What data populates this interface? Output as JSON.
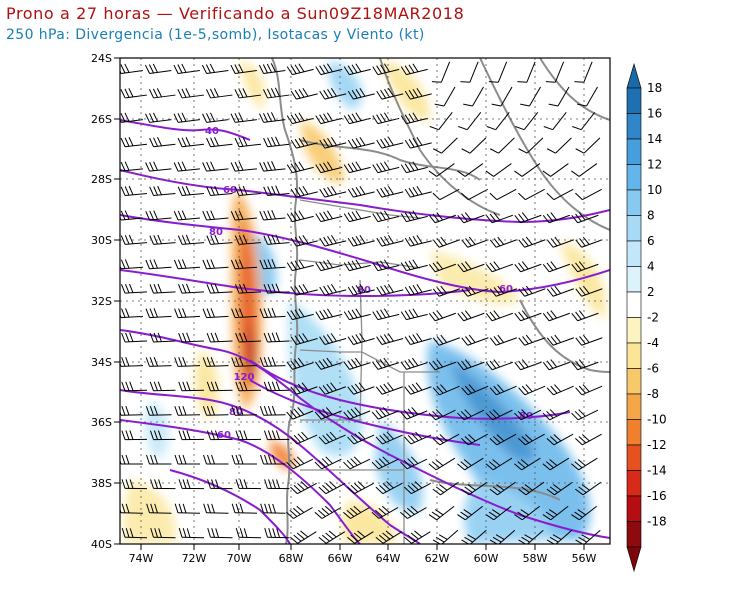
{
  "header": {
    "title": "Prono a 27 horas — Verificando a Sun09Z18MAR2018",
    "subtitle": "250 hPa: Divergencia (1e-5,somb), Isotacas y Viento (kt)"
  },
  "map": {
    "region": "Sudamerica central-sur",
    "lat_ticks": [
      "24S",
      "26S",
      "28S",
      "30S",
      "32S",
      "34S",
      "36S",
      "38S",
      "40S"
    ],
    "lon_ticks": [
      "74W",
      "72W",
      "70W",
      "68W",
      "66W",
      "64W",
      "62W",
      "60W",
      "58W",
      "56W"
    ],
    "isotach_labels": [
      "40",
      "60",
      "80",
      "80",
      "60",
      "120",
      "80",
      "80",
      "60"
    ]
  },
  "colorbar": {
    "labels": [
      "18",
      "16",
      "14",
      "12",
      "10",
      "8",
      "6",
      "4",
      "2",
      "-2",
      "-4",
      "-6",
      "-8",
      "-10",
      "-12",
      "-14",
      "-16",
      "-18"
    ],
    "colors": [
      "#1f6fb3",
      "#2f86c9",
      "#469fdc",
      "#63b6ec",
      "#86caf2",
      "#a6daf5",
      "#c2e7f8",
      "#ddf3fb",
      "#ffffff",
      "#fcf3c0",
      "#fbe597",
      "#f8c96b",
      "#f5a646",
      "#f07f2e",
      "#e6521f",
      "#d72a18",
      "#b60d12",
      "#8e0a0e"
    ],
    "top_arrow_color": "#1a6aa8",
    "bottom_arrow_color": "#7d0609"
  },
  "styles": {
    "isotach_color": "#8a1ccf",
    "border_color": "#8c8c8c",
    "barb_color": "#000000"
  }
}
